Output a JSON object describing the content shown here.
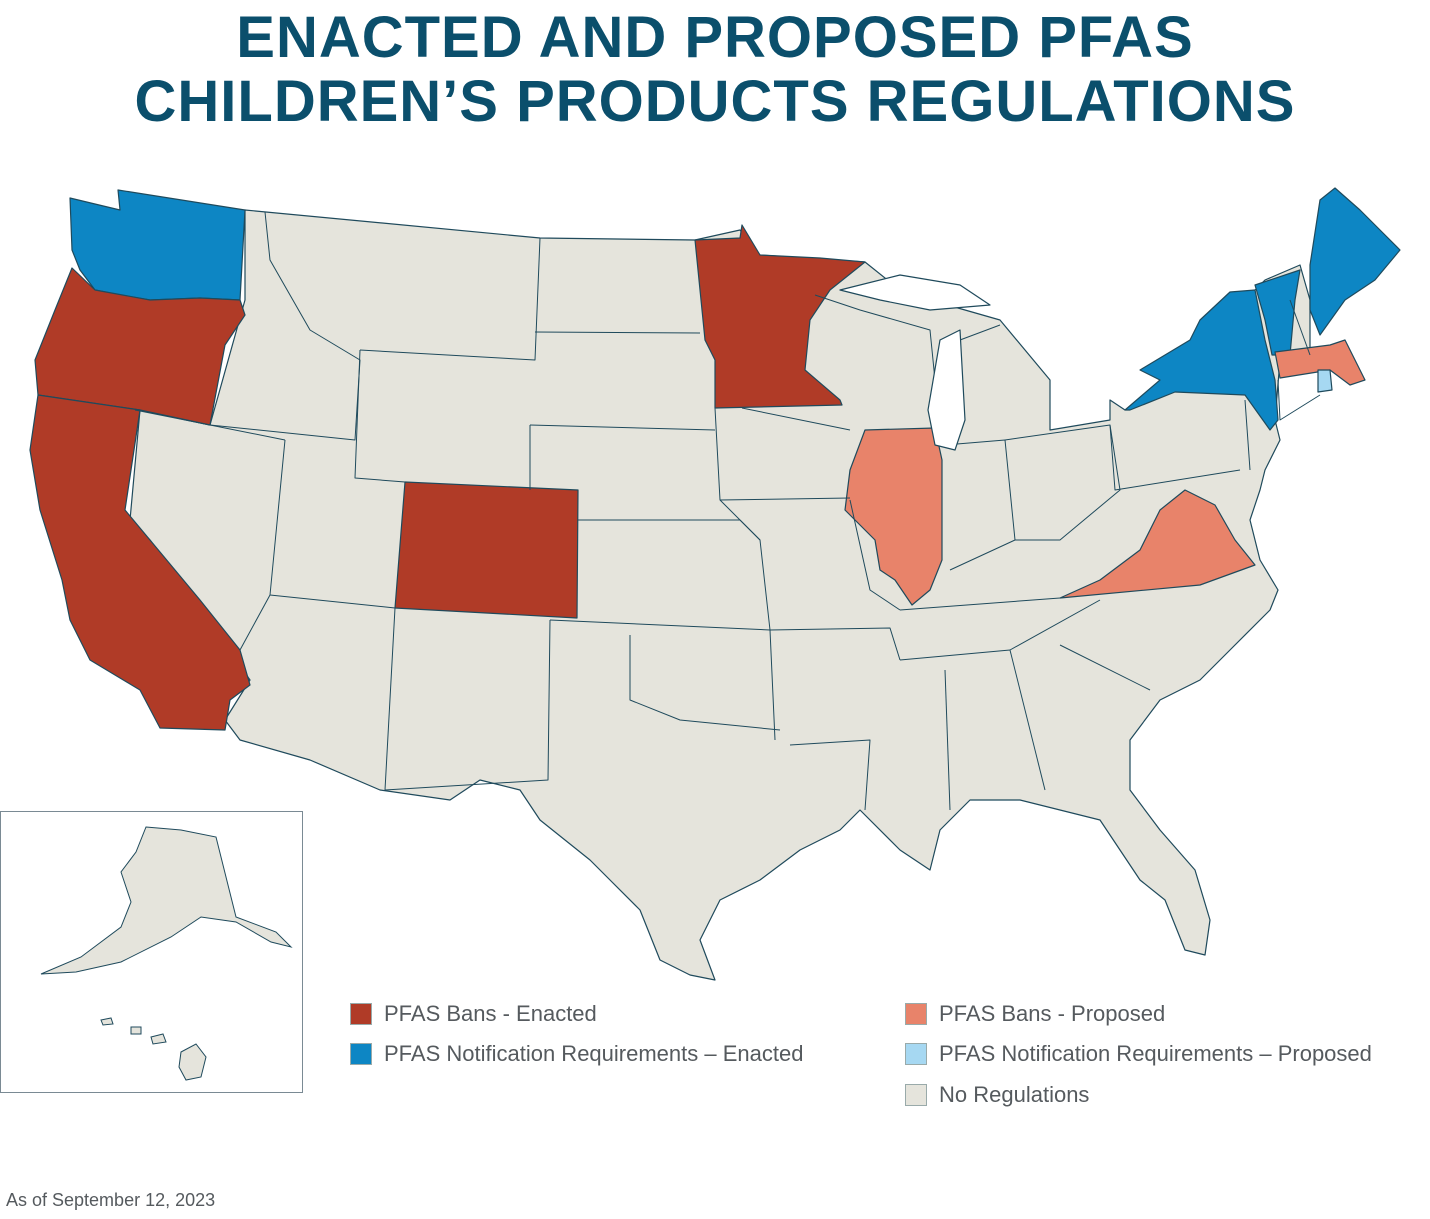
{
  "title": {
    "line1": "ENACTED AND PROPOSED PFAS",
    "line2": "CHILDREN’S PRODUCTS REGULATIONS"
  },
  "colors": {
    "bans_enacted": "#b03b27",
    "notification_enacted": "#0d86c4",
    "bans_proposed": "#e8836a",
    "notification_proposed": "#a6d8f2",
    "no_regulations": "#e5e4dc",
    "border": "#1f4a5c",
    "title": "#0b4f6c"
  },
  "legend": {
    "bans_enacted": "PFAS Bans - Enacted",
    "notification_enacted": "PFAS Notification Requirements – Enacted",
    "bans_proposed": "PFAS Bans - Proposed",
    "notification_proposed": "PFAS Notification Requirements – Proposed",
    "no_regulations": "No Regulations"
  },
  "footnote": "As of September 12, 2023"
}
